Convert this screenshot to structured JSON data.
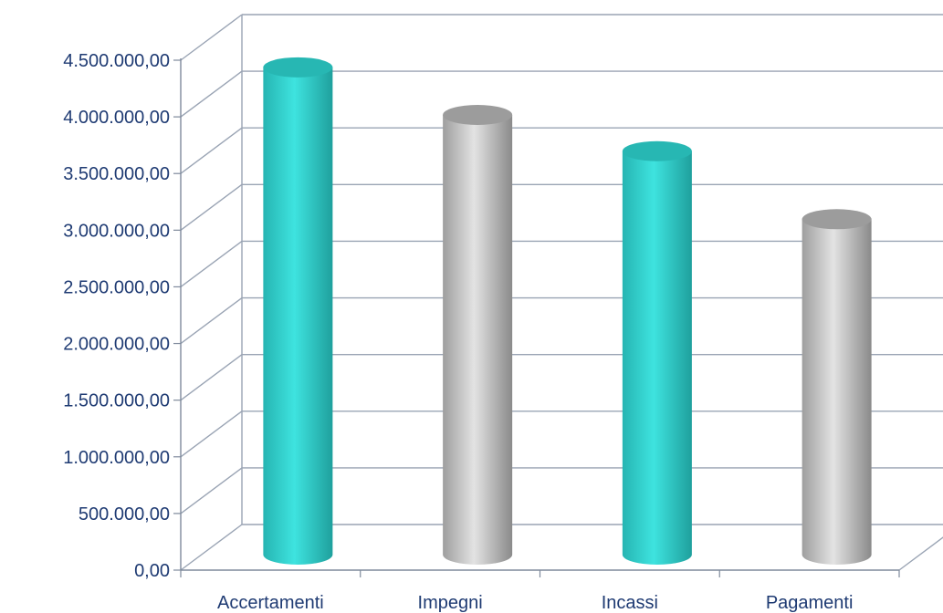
{
  "chart_data": {
    "type": "bar",
    "style": "3d-cylinder",
    "categories": [
      "Accertamenti",
      "Impegni",
      "Incassi",
      "Pagamenti"
    ],
    "values": [
      4300000,
      3880000,
      3560000,
      2960000
    ],
    "bar_colors": [
      "#2fd3cf",
      "#bdbdbd",
      "#2fd3cf",
      "#bdbdbd"
    ],
    "ylim": [
      0,
      4500000
    ],
    "yticks": [
      0,
      500000,
      1000000,
      1500000,
      2000000,
      2500000,
      3000000,
      3500000,
      4000000,
      4500000
    ],
    "ytick_labels": [
      "0,00",
      "500.000,00",
      "1.000.000,00",
      "1.500.000,00",
      "2.000.000,00",
      "2.500.000,00",
      "3.000.000,00",
      "3.500.000,00",
      "4.000.000,00",
      "4.500.000,00"
    ],
    "grid": true,
    "legend": "none"
  }
}
